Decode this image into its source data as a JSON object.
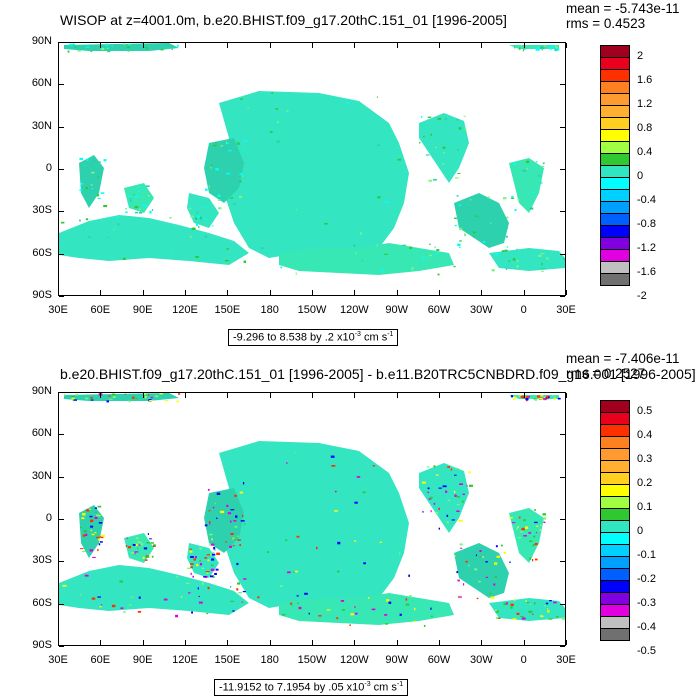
{
  "chart_data": [
    {
      "type": "heatmap",
      "title": "WISOP at z=4001.0m, b.e20.BHIST.f09_g17.20thC.151_01 [1996-2005]",
      "mean_text": "mean = -5.743e-11",
      "rms_text": "rms = 0.4523",
      "range_text": "-9.296 to 8.538 by .2 x10",
      "range_exp": "-3",
      "range_units": " cm s",
      "range_units_exp": "-1",
      "y_ticks": [
        "90N",
        "60N",
        "30N",
        "0",
        "30S",
        "60S",
        "90S"
      ],
      "x_ticks": [
        "30E",
        "60E",
        "90E",
        "120E",
        "150E",
        "180",
        "150W",
        "120W",
        "90W",
        "60W",
        "30W",
        "0",
        "30E"
      ],
      "colorbar_labels": [
        "2",
        "1.6",
        "1.2",
        "0.8",
        "0.4",
        "0",
        "-0.4",
        "-0.8",
        "-1.2",
        "-1.6",
        "-2"
      ]
    },
    {
      "type": "heatmap",
      "title": "b.e20.BHIST.f09_g17.20thC.151_01 [1996-2005] - b.e11.B20TRC5CNBDRD.f09_g16.001 [1996-2005]",
      "mean_text": "mean = -7.406e-11",
      "rms_text": "rms = 0.2527",
      "range_text": "-11.9152 to 7.1954 by .05 x10",
      "range_exp": "-3",
      "range_units": " cm s",
      "range_units_exp": "-1",
      "y_ticks": [
        "90N",
        "60N",
        "30N",
        "0",
        "30S",
        "60S",
        "90S"
      ],
      "x_ticks": [
        "30E",
        "60E",
        "90E",
        "120E",
        "150E",
        "180",
        "150W",
        "120W",
        "90W",
        "60W",
        "30W",
        "0",
        "30E"
      ],
      "colorbar_labels": [
        "0.5",
        "0.4",
        "0.3",
        "0.2",
        "0.1",
        "0",
        "-0.1",
        "-0.2",
        "-0.3",
        "-0.4",
        "-0.5"
      ]
    }
  ],
  "colors": {
    "ocean_field": "#33e5c0",
    "ocean_field_alt": "#2ed1ad",
    "ocean_speckle": "#7df57a",
    "land": "#ffffff",
    "colorbar": [
      "#a0001e",
      "#e8001c",
      "#ff3000",
      "#ff8020",
      "#ff9a30",
      "#ffb030",
      "#ffd020",
      "#ffff00",
      "#a0ff40",
      "#30c830",
      "#30e5c0",
      "#00ffff",
      "#00d0ff",
      "#00a0ff",
      "#0060ff",
      "#0000ff",
      "#8000e0",
      "#e000e0",
      "#c0c0c0",
      "#707070"
    ]
  }
}
